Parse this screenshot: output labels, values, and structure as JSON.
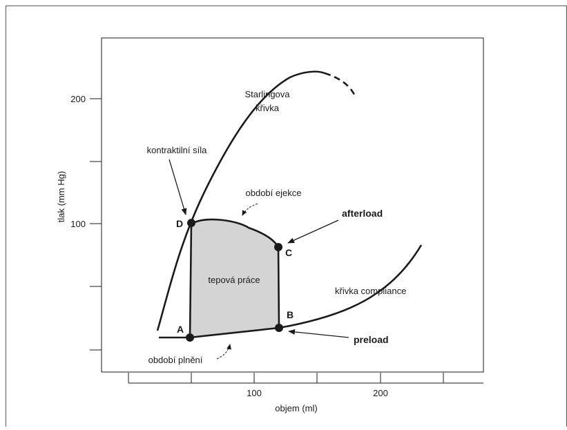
{
  "axes": {
    "ylabel": "tlak (mm Hg)",
    "xlabel": "objem (ml)",
    "y_ticks": [
      "200",
      "100"
    ],
    "x_ticks": [
      "100",
      "200"
    ]
  },
  "labels": {
    "starling_line1": "Starlingova",
    "starling_line2": "křivka",
    "contractility": "kontraktilní síla",
    "ejection": "období ejekce",
    "afterload": "afterload",
    "stroke_work": "tepová práce",
    "compliance": "křivka compliance",
    "filling": "období plnění",
    "preload": "preload"
  },
  "points": {
    "a": "A",
    "b": "B",
    "c": "C",
    "d": "D"
  },
  "colors": {
    "line": "#1a1a1a",
    "fill": "#d4d4d4",
    "frame": "#555555"
  }
}
